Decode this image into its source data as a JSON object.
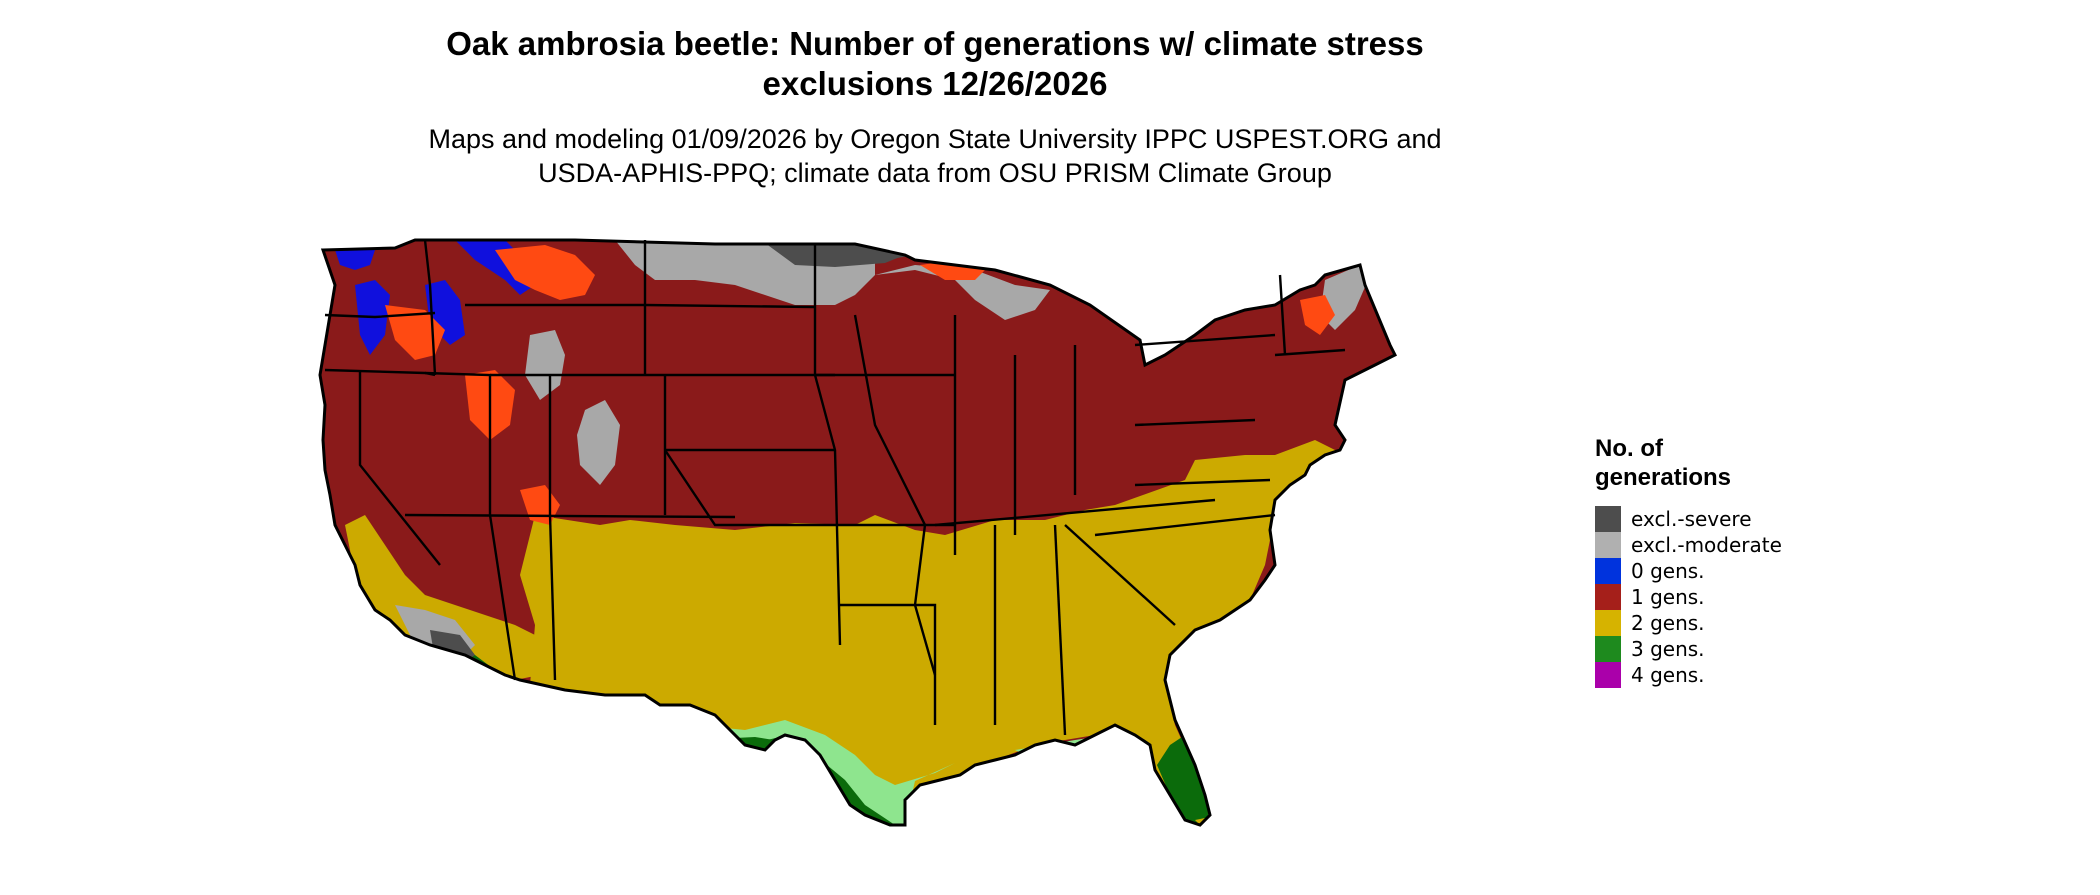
{
  "title": {
    "line1": "Oak ambrosia beetle: Number of generations w/ climate stress",
    "line2": "exclusions 12/26/2026"
  },
  "subtitle": {
    "line1": "Maps and modeling 01/09/2026 by Oregon State University IPPC USPEST.ORG and",
    "line2": "USDA-APHIS-PPQ; climate data from OSU PRISM Climate Group"
  },
  "legend": {
    "title_line1": "No. of",
    "title_line2": "generations",
    "items": [
      {
        "label": "excl.-severe",
        "color": "#4d4d4d"
      },
      {
        "label": "excl.-moderate",
        "color": "#b0b0b0"
      },
      {
        "label": "0 gens.",
        "color": "#0033dd"
      },
      {
        "label": "1 gens.",
        "color": "#a51f1a"
      },
      {
        "label": "2 gens.",
        "color": "#d6b300"
      },
      {
        "label": "3 gens.",
        "color": "#1e8a1e"
      },
      {
        "label": "4 gens.",
        "color": "#aa00aa"
      }
    ]
  },
  "colors": {
    "map_dark_red": "#8a1a1a",
    "map_orange": "#ff4a12",
    "map_yellow": "#ccaa00",
    "map_dark_green": "#0b6b0b",
    "map_light_green": "#8ee58e",
    "map_blue": "#1010dd",
    "map_grey": "#a8a8a8",
    "map_dark_grey": "#4d4d4d",
    "state_border": "#000000"
  }
}
